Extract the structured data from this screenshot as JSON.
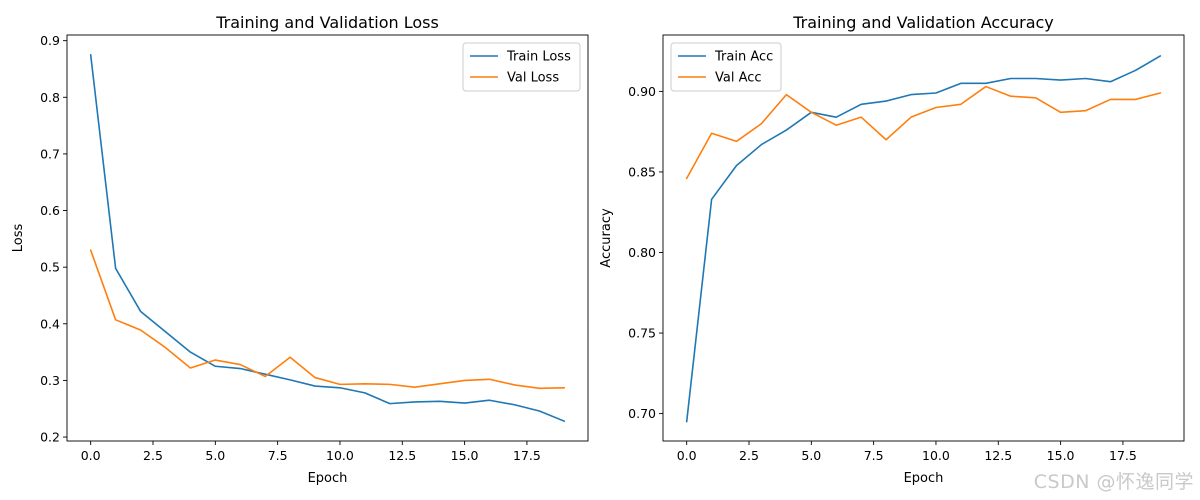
{
  "watermark": "CSDN @怀逸同学",
  "colors": {
    "train": "#1f77b4",
    "val": "#ff7f0e",
    "axis": "#000000"
  },
  "chart_data": [
    {
      "type": "line",
      "title": "Training and Validation Loss",
      "xlabel": "Epoch",
      "ylabel": "Loss",
      "x": [
        0,
        1,
        2,
        3,
        4,
        5,
        6,
        7,
        8,
        9,
        10,
        11,
        12,
        13,
        14,
        15,
        16,
        17,
        18,
        19
      ],
      "xlim": [
        -0.95,
        19.95
      ],
      "ylim": [
        0.193,
        0.91
      ],
      "xticks": [
        0.0,
        2.5,
        5.0,
        7.5,
        10.0,
        12.5,
        15.0,
        17.5
      ],
      "xtick_labels": [
        "0.0",
        "2.5",
        "5.0",
        "7.5",
        "10.0",
        "12.5",
        "15.0",
        "17.5"
      ],
      "yticks": [
        0.2,
        0.3,
        0.4,
        0.5,
        0.6,
        0.7,
        0.8,
        0.9
      ],
      "ytick_labels": [
        "0.2",
        "0.3",
        "0.4",
        "0.5",
        "0.6",
        "0.7",
        "0.8",
        "0.9"
      ],
      "legend_position": "top-right",
      "grid": false,
      "series": [
        {
          "name": "Train Loss",
          "color": "#1f77b4",
          "values": [
            0.875,
            0.498,
            0.422,
            0.386,
            0.35,
            0.325,
            0.321,
            0.311,
            0.301,
            0.29,
            0.287,
            0.278,
            0.259,
            0.262,
            0.263,
            0.26,
            0.265,
            0.257,
            0.246,
            0.228
          ]
        },
        {
          "name": "Val Loss",
          "color": "#ff7f0e",
          "values": [
            0.53,
            0.407,
            0.389,
            0.358,
            0.322,
            0.336,
            0.328,
            0.307,
            0.341,
            0.305,
            0.293,
            0.294,
            0.293,
            0.288,
            0.294,
            0.3,
            0.302,
            0.292,
            0.286,
            0.287
          ]
        }
      ]
    },
    {
      "type": "line",
      "title": "Training and Validation Accuracy",
      "xlabel": "Epoch",
      "ylabel": "Accuracy",
      "x": [
        0,
        1,
        2,
        3,
        4,
        5,
        6,
        7,
        8,
        9,
        10,
        11,
        12,
        13,
        14,
        15,
        16,
        17,
        18,
        19
      ],
      "xlim": [
        -0.95,
        19.95
      ],
      "ylim": [
        0.683,
        0.935
      ],
      "xticks": [
        0.0,
        2.5,
        5.0,
        7.5,
        10.0,
        12.5,
        15.0,
        17.5
      ],
      "xtick_labels": [
        "0.0",
        "2.5",
        "5.0",
        "7.5",
        "10.0",
        "12.5",
        "15.0",
        "17.5"
      ],
      "yticks": [
        0.7,
        0.75,
        0.8,
        0.85,
        0.9
      ],
      "ytick_labels": [
        "0.70",
        "0.75",
        "0.80",
        "0.85",
        "0.90"
      ],
      "legend_position": "top-left",
      "grid": false,
      "series": [
        {
          "name": "Train Acc",
          "color": "#1f77b4",
          "values": [
            0.695,
            0.833,
            0.854,
            0.867,
            0.876,
            0.887,
            0.884,
            0.892,
            0.894,
            0.898,
            0.899,
            0.905,
            0.905,
            0.908,
            0.908,
            0.907,
            0.908,
            0.906,
            0.913,
            0.922
          ]
        },
        {
          "name": "Val Acc",
          "color": "#ff7f0e",
          "values": [
            0.846,
            0.874,
            0.869,
            0.88,
            0.898,
            0.887,
            0.879,
            0.884,
            0.87,
            0.884,
            0.89,
            0.892,
            0.903,
            0.897,
            0.896,
            0.887,
            0.888,
            0.895,
            0.895,
            0.899
          ]
        }
      ]
    }
  ]
}
